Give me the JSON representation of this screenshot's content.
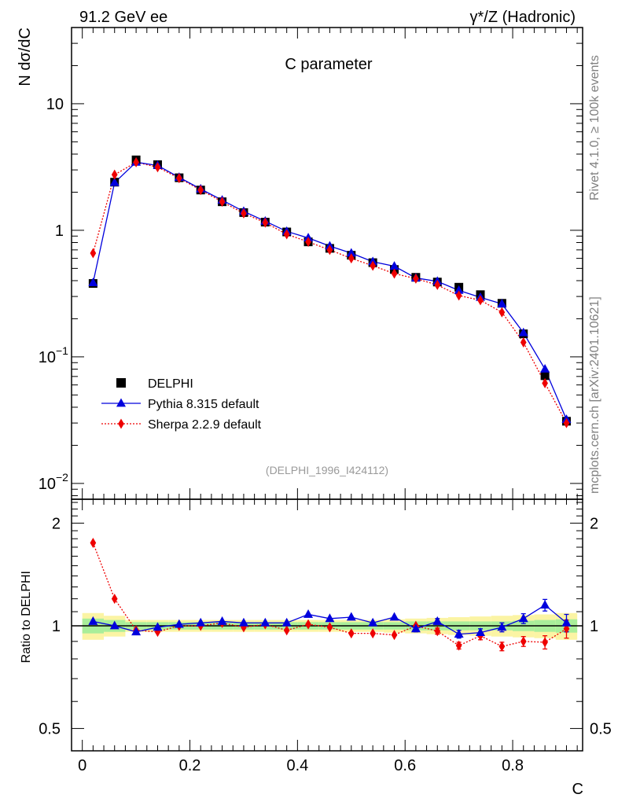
{
  "header": {
    "left": "91.2 GeV ee",
    "right": "γ*/Z (Hadronic)"
  },
  "side": {
    "rivet": "Rivet 4.1.0, ≥ 100k events",
    "mcplots": "mcplots.cern.ch [arXiv:2401.10621]"
  },
  "chart_data": [
    {
      "type": "scatter",
      "title": "C parameter",
      "ylabel": "N  dσ/dC",
      "xlabel": "C",
      "yscale": "log",
      "xlim": [
        -0.02,
        0.93
      ],
      "ylim": [
        0.0075,
        40
      ],
      "xticks": [
        {
          "v": 0,
          "label": "0"
        },
        {
          "v": 0.2,
          "label": "0.2"
        },
        {
          "v": 0.4,
          "label": "0.4"
        },
        {
          "v": 0.6,
          "label": "0.6"
        },
        {
          "v": 0.8,
          "label": "0.8"
        }
      ],
      "yticks": [
        {
          "v": 10,
          "label": "10"
        },
        {
          "v": 1,
          "label": "1"
        },
        {
          "v": 0.1,
          "label": "10",
          "exp": "−1"
        },
        {
          "v": 0.01,
          "label": "10",
          "exp": "−2"
        }
      ],
      "analysis_tag": "(DELPHI_1996_I424112)",
      "x": [
        0.02,
        0.06,
        0.1,
        0.14,
        0.18,
        0.22,
        0.26,
        0.3,
        0.34,
        0.38,
        0.42,
        0.46,
        0.5,
        0.54,
        0.58,
        0.62,
        0.66,
        0.7,
        0.74,
        0.78,
        0.82,
        0.86,
        0.9
      ],
      "legend": [
        {
          "key": "data",
          "label": "DELPHI"
        },
        {
          "key": "pythia",
          "label": "Pythia 8.315 default"
        },
        {
          "key": "sherpa",
          "label": "Sherpa 2.2.9 default"
        }
      ],
      "series": [
        {
          "name": "DELPHI",
          "key": "data",
          "color": "#000000",
          "marker": "square",
          "values": [
            0.38,
            2.4,
            3.6,
            3.3,
            2.6,
            2.08,
            1.68,
            1.38,
            1.16,
            0.97,
            0.81,
            0.72,
            0.635,
            0.555,
            0.49,
            0.425,
            0.39,
            0.355,
            0.31,
            0.265,
            0.152,
            0.071,
            0.031
          ]
        },
        {
          "name": "Pythia 8.315 default",
          "key": "pythia",
          "color": "#0000dd",
          "marker": "triangle",
          "line": "solid",
          "values": [
            0.385,
            2.38,
            3.45,
            3.25,
            2.62,
            2.12,
            1.73,
            1.41,
            1.18,
            0.98,
            0.87,
            0.75,
            0.66,
            0.565,
            0.52,
            0.42,
            0.395,
            0.335,
            0.295,
            0.262,
            0.155,
            0.08,
            0.032
          ]
        },
        {
          "name": "Sherpa 2.2.9 default",
          "key": "sherpa",
          "color": "#ee0000",
          "marker": "diamond",
          "line": "dotted",
          "values": [
            0.66,
            2.75,
            3.45,
            3.15,
            2.58,
            2.08,
            1.68,
            1.36,
            1.15,
            0.93,
            0.81,
            0.7,
            0.6,
            0.525,
            0.455,
            0.415,
            0.37,
            0.305,
            0.28,
            0.225,
            0.13,
            0.062,
            0.03
          ]
        }
      ]
    },
    {
      "type": "scatter",
      "ylabel": "Ratio to DELPHI",
      "xlabel": "C",
      "yscale": "log",
      "ylim": [
        0.43,
        2.35
      ],
      "yticks": [
        {
          "v": 2,
          "label": "2"
        },
        {
          "v": 1,
          "label": "1"
        },
        {
          "v": 0.5,
          "label": "0.5"
        }
      ],
      "band_inner": [
        0.05,
        0.04,
        0.025,
        0.025,
        0.025,
        0.025,
        0.025,
        0.025,
        0.025,
        0.025,
        0.025,
        0.025,
        0.025,
        0.025,
        0.025,
        0.03,
        0.03,
        0.03,
        0.03,
        0.03,
        0.035,
        0.04,
        0.045
      ],
      "band_outer": [
        0.09,
        0.07,
        0.04,
        0.04,
        0.04,
        0.04,
        0.04,
        0.04,
        0.04,
        0.04,
        0.04,
        0.04,
        0.04,
        0.04,
        0.045,
        0.05,
        0.055,
        0.06,
        0.065,
        0.07,
        0.075,
        0.08,
        0.09
      ],
      "series": [
        {
          "name": "Pythia 8.315 default",
          "key": "pythia",
          "color": "#0000dd",
          "values": [
            1.03,
            1.0,
            0.96,
            0.99,
            1.01,
            1.02,
            1.03,
            1.02,
            1.02,
            1.02,
            1.08,
            1.05,
            1.06,
            1.02,
            1.06,
            0.98,
            1.03,
            0.945,
            0.955,
            0.99,
            1.05,
            1.15,
            1.02
          ],
          "errors": [
            0,
            0,
            0,
            0,
            0,
            0,
            0,
            0,
            0,
            0,
            0,
            0,
            0,
            0,
            0,
            0.02,
            0.02,
            0.025,
            0.025,
            0.03,
            0.035,
            0.045,
            0.06
          ]
        },
        {
          "name": "Sherpa 2.2.9 default",
          "key": "sherpa",
          "color": "#ee0000",
          "values": [
            1.75,
            1.2,
            0.97,
            0.96,
            1.0,
            1.0,
            1.02,
            0.99,
            1.01,
            0.97,
            1.01,
            0.99,
            0.95,
            0.95,
            0.94,
            1.0,
            0.965,
            0.875,
            0.935,
            0.87,
            0.9,
            0.895,
            0.98
          ],
          "errors": [
            0,
            0,
            0,
            0,
            0,
            0,
            0,
            0,
            0,
            0,
            0,
            0,
            0,
            0,
            0,
            0,
            0.02,
            0.02,
            0.025,
            0.025,
            0.03,
            0.04,
            0.06
          ]
        }
      ]
    }
  ]
}
